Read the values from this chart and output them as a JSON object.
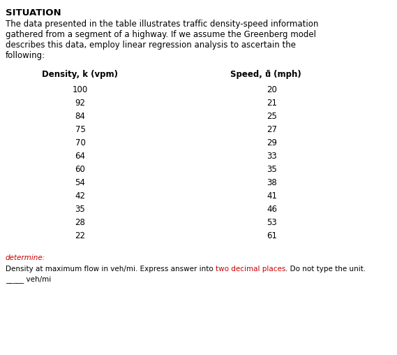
{
  "title": "SITUATION",
  "lines": [
    "The data presented in the table illustrates traffic density-speed information",
    "gathered from a segment of a highway. If we assume the Greenberg model",
    "describes this data, employ linear regression analysis to ascertain the",
    "following:"
  ],
  "col1_header": "Density, k (vpm)",
  "col2_header_pre": "Speed, u",
  "col2_header_sub": "s",
  "col2_header_post": " (mph)",
  "density": [
    100,
    92,
    84,
    75,
    70,
    64,
    60,
    54,
    42,
    35,
    28,
    22
  ],
  "speed": [
    20,
    21,
    25,
    27,
    29,
    33,
    35,
    38,
    41,
    46,
    53,
    61
  ],
  "determine_label": "determine:",
  "q_part1": "Density at maximum flow in veh/mi. Express answer into ",
  "q_part2": "two decimal places",
  "q_part3": ". Do not type the unit.",
  "answer_blank": "_____ veh/mi",
  "highlight_color": "#cc0000",
  "bg_color": "#ffffff",
  "text_color": "#000000",
  "title_fontsize": 9.5,
  "body_fontsize": 8.5,
  "table_fontsize": 8.5,
  "small_fontsize": 7.5
}
